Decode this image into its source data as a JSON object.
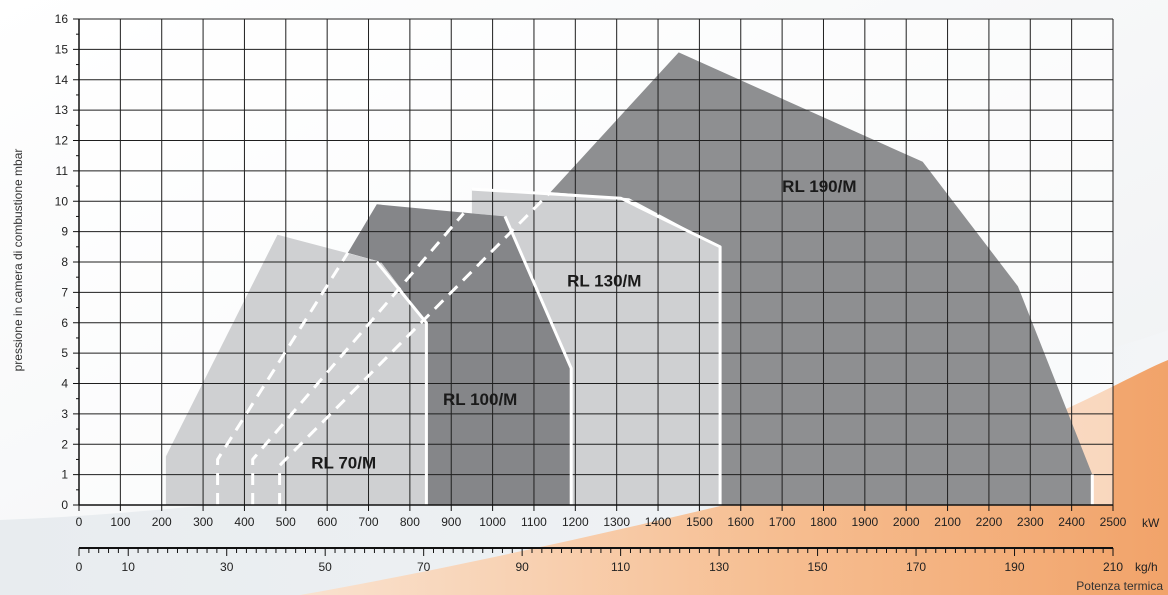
{
  "chart_data": {
    "type": "area",
    "ylabel": "pressione in camera di combustione    mbar",
    "xlabel_primary_unit": "kW",
    "xlabel_secondary_unit": "kg/h",
    "xlabel_footer": "Potenza termica",
    "xlim": [
      0,
      2500
    ],
    "ylim": [
      0,
      16
    ],
    "x_ticks": [
      0,
      100,
      200,
      300,
      400,
      500,
      600,
      700,
      800,
      900,
      1000,
      1100,
      1200,
      1300,
      1400,
      1500,
      1600,
      1700,
      1800,
      1900,
      2000,
      2100,
      2200,
      2300,
      2400,
      2500
    ],
    "y_ticks": [
      0,
      1,
      2,
      3,
      4,
      5,
      6,
      7,
      8,
      9,
      10,
      11,
      12,
      13,
      14,
      15,
      16
    ],
    "secondary_axis": {
      "min": 0,
      "max": 210,
      "labels": [
        0,
        10,
        30,
        50,
        70,
        90,
        110,
        130,
        150,
        170,
        190,
        210
      ],
      "minor_step": 2
    },
    "grid": true,
    "series": [
      {
        "name": "RL 190/M",
        "color": "#8e8f91",
        "points": [
          [
            1140,
            10.3
          ],
          [
            1450,
            14.9
          ],
          [
            2040,
            11.3
          ],
          [
            2270,
            7.2
          ],
          [
            2450,
            1.0
          ],
          [
            2450,
            0
          ],
          [
            1550,
            0
          ],
          [
            1550,
            8.5
          ],
          [
            1330,
            10.1
          ],
          [
            1140,
            10.3
          ]
        ]
      },
      {
        "name": "RL 130/M",
        "color": "#cfd0d2",
        "points": [
          [
            950,
            10.4
          ],
          [
            1310,
            10.1
          ],
          [
            1550,
            8.5
          ],
          [
            1550,
            0
          ],
          [
            1190,
            0
          ],
          [
            1190,
            4.5
          ],
          [
            1030,
            9.5
          ],
          [
            950,
            9.6
          ]
        ]
      },
      {
        "name": "RL 100/M",
        "color": "#858689",
        "points": [
          [
            650,
            8.3
          ],
          [
            720,
            9.9
          ],
          [
            950,
            9.6
          ],
          [
            1030,
            9.5
          ],
          [
            1190,
            4.5
          ],
          [
            1190,
            0
          ],
          [
            840,
            0
          ],
          [
            840,
            6.0
          ],
          [
            730,
            8.0
          ],
          [
            650,
            8.3
          ]
        ]
      },
      {
        "name": "RL 70/M",
        "color": "#cfd0d2",
        "points": [
          [
            210,
            1.6
          ],
          [
            480,
            8.9
          ],
          [
            730,
            8.0
          ],
          [
            840,
            6.0
          ],
          [
            840,
            0
          ],
          [
            210,
            0
          ]
        ]
      }
    ],
    "dashed_lines": [
      [
        [
          335,
          0
        ],
        [
          335,
          1.5
        ],
        [
          650,
          8.3
        ]
      ],
      [
        [
          420,
          0
        ],
        [
          420,
          1.5
        ],
        [
          930,
          9.6
        ]
      ],
      [
        [
          485,
          0
        ],
        [
          485,
          1.3
        ],
        [
          1140,
          10.3
        ]
      ]
    ],
    "border_lines": [
      [
        [
          720,
          8.0
        ],
        [
          840,
          6.0
        ],
        [
          840,
          0
        ]
      ],
      [
        [
          1030,
          9.5
        ],
        [
          1190,
          4.5
        ],
        [
          1190,
          0
        ]
      ],
      [
        [
          950,
          10.4
        ],
        [
          1310,
          10.1
        ],
        [
          1550,
          8.5
        ],
        [
          1550,
          0
        ]
      ],
      [
        [
          2450,
          1.0
        ],
        [
          2450,
          0
        ]
      ]
    ],
    "labels": [
      {
        "text": "RL 190/M",
        "x": 1790,
        "y": 10.3
      },
      {
        "text": "RL 130/M",
        "x": 1270,
        "y": 7.2
      },
      {
        "text": "RL 100/M",
        "x": 970,
        "y": 3.3
      },
      {
        "text": "RL 70/M",
        "x": 640,
        "y": 1.2
      }
    ]
  }
}
